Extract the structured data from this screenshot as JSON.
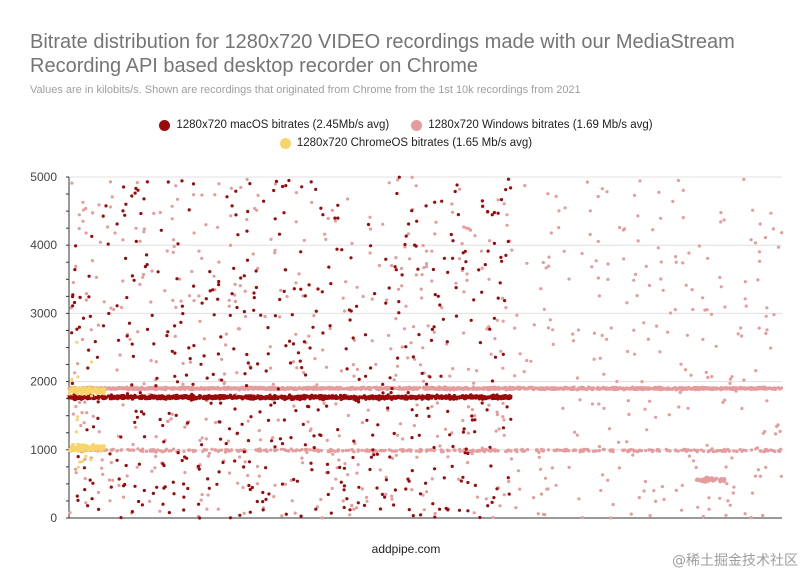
{
  "title": "Bitrate distribution for 1280x720 VIDEO recordings made with our MediaStream Recording API based desktop recorder on Chrome",
  "subtitle": "Values are in kilobits/s. Shown are recordings that originated from Chrome from the 1st 10k recordings from 2021",
  "footer": "addpipe.com",
  "watermark": "@稀土掘金技术社区",
  "chart_data": {
    "type": "scatter",
    "title": "Bitrate distribution for 1280x720 VIDEO recordings made with our MediaStream Recording API based desktop recorder on Chrome",
    "xlabel": "",
    "ylabel": "",
    "ylim": [
      0,
      5000
    ],
    "yticks": [
      0,
      1000,
      2000,
      3000,
      4000,
      5000
    ],
    "grid": true,
    "legend": "top-center",
    "series": [
      {
        "name": "1280x720 macOS bitrates (2.45Mb/s avg)",
        "color": "#9b0a0a",
        "bands": [
          {
            "x": [
              0,
              620
            ],
            "center": 1770,
            "spread": 40,
            "count": 1200
          },
          {
            "x": [
              0,
              620
            ],
            "min": 0,
            "max": 5000,
            "count": 520
          }
        ]
      },
      {
        "name": "1280x720 Windows bitrates (1.69 Mb/s avg)",
        "color": "#e59c9c",
        "bands": [
          {
            "x": [
              0,
              1000
            ],
            "center": 1900,
            "spread": 25,
            "count": 1700
          },
          {
            "x": [
              0,
              1000
            ],
            "center": 990,
            "spread": 30,
            "count": 420
          },
          {
            "x": [
              880,
              920
            ],
            "center": 560,
            "spread": 50,
            "count": 60
          },
          {
            "x": [
              0,
              1000
            ],
            "min": 0,
            "max": 5000,
            "count": 720
          }
        ]
      },
      {
        "name": "1280x720 ChromeOS bitrates (1.65 Mb/s avg)",
        "color": "#f7d56a",
        "bands": [
          {
            "x": [
              0,
              50
            ],
            "center": 1870,
            "spread": 70,
            "count": 150
          },
          {
            "x": [
              0,
              50
            ],
            "center": 1030,
            "spread": 70,
            "count": 110
          },
          {
            "x": [
              0,
              50
            ],
            "min": 700,
            "max": 2600,
            "count": 15
          }
        ]
      }
    ]
  }
}
